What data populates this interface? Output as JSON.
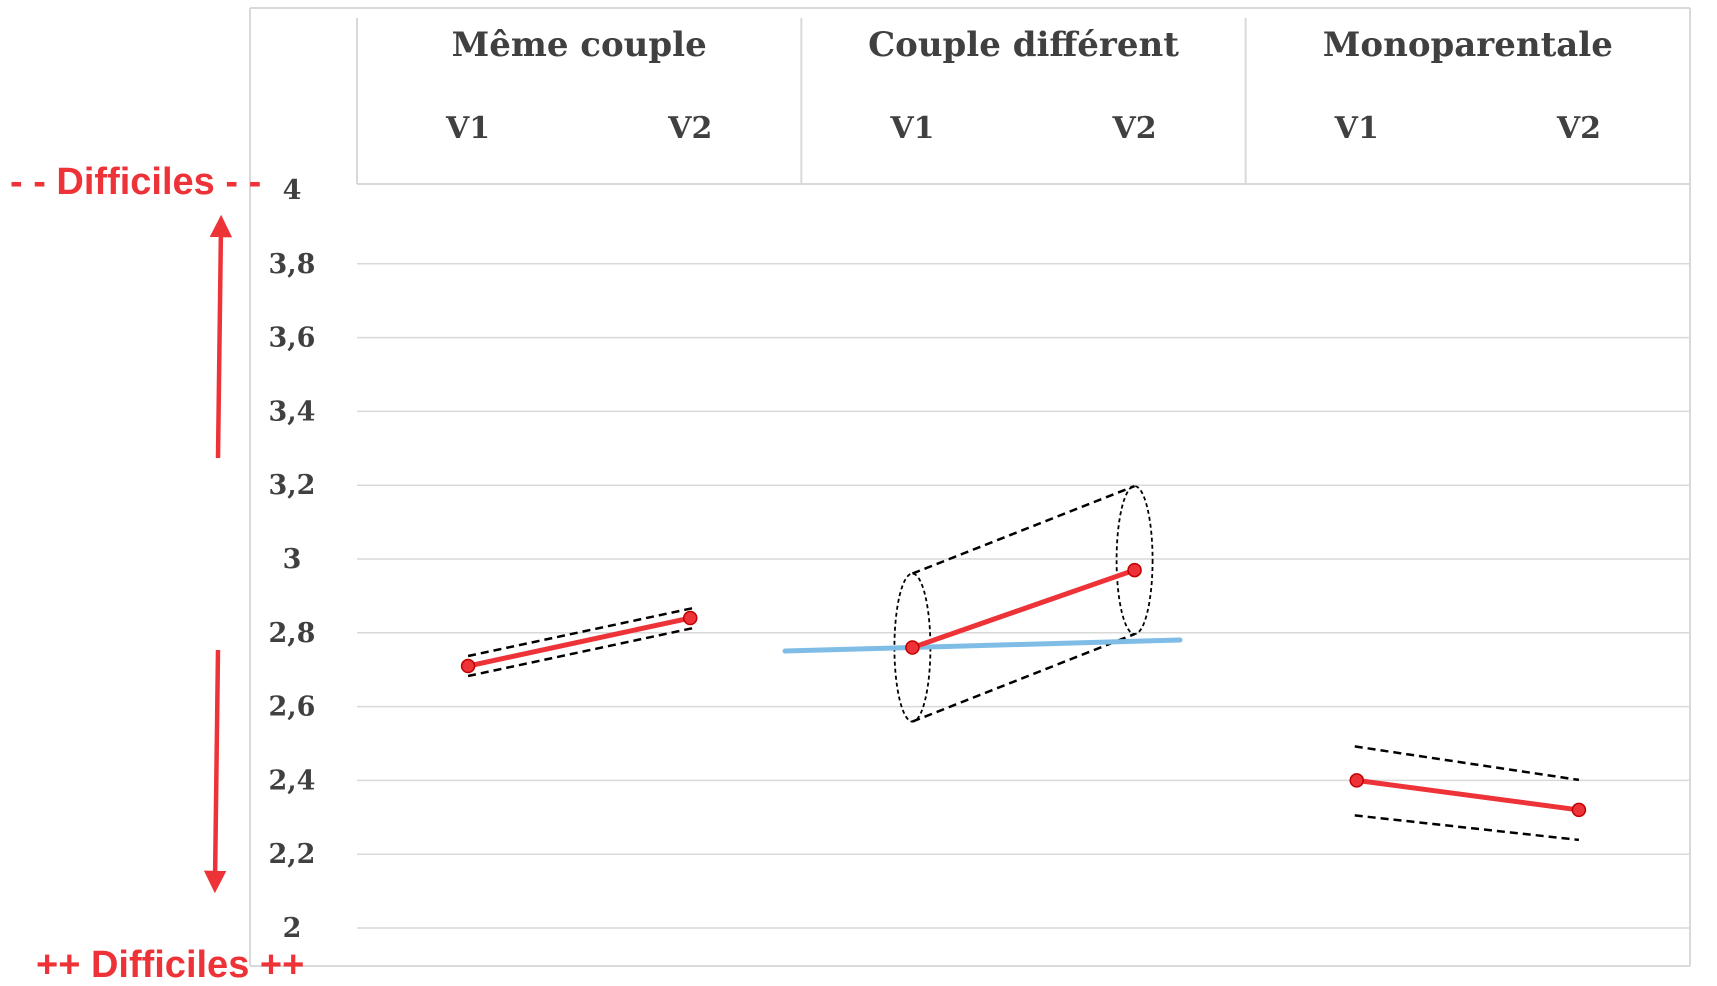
{
  "chart_data": {
    "type": "line",
    "groups": [
      {
        "name": "Même couple",
        "waves": [
          "V1",
          "V2"
        ],
        "values": [
          2.71,
          2.84
        ]
      },
      {
        "name": "Couple différent",
        "waves": [
          "V1",
          "V2"
        ],
        "values": [
          2.76,
          2.97
        ]
      },
      {
        "name": "Monoparentale",
        "waves": [
          "V1",
          "V2"
        ],
        "values": [
          2.4,
          2.32
        ]
      }
    ],
    "ylim": [
      2,
      4
    ],
    "yticks": [
      "4",
      "3,8",
      "3,6",
      "3,4",
      "3,2",
      "3",
      "2,8",
      "2,6",
      "2,4",
      "2,2",
      "2"
    ],
    "grid": true,
    "annotations": {
      "top": "- - Difficiles - -",
      "bottom": "++ Difficiles ++"
    },
    "colors": {
      "series": "#ee3338",
      "annotation": "#ee3338",
      "trend": "#7fbde6",
      "grid": "#d9d9d9",
      "text": "#404040"
    }
  }
}
